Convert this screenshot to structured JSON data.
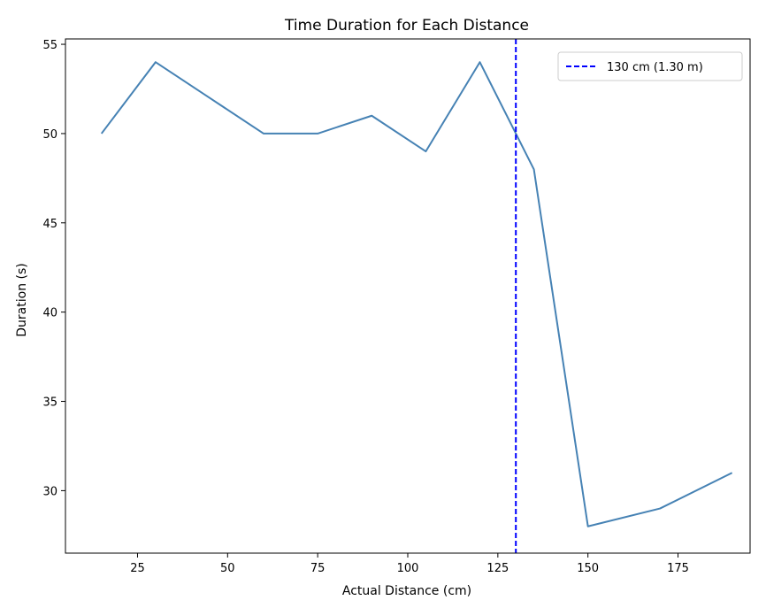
{
  "chart_data": {
    "type": "line",
    "title": "Time Duration for Each Distance",
    "xlabel": "Actual Distance (cm)",
    "ylabel": "Duration (s)",
    "xlim": [
      5,
      195
    ],
    "ylim": [
      26.5,
      55.3
    ],
    "xticks": [
      25,
      50,
      75,
      100,
      125,
      150,
      175
    ],
    "yticks": [
      30,
      35,
      40,
      45,
      50,
      55
    ],
    "grid": false,
    "legend_position": "top-right",
    "series": [
      {
        "color": "#4682b4",
        "x": [
          15,
          30,
          45,
          60,
          75,
          90,
          105,
          120,
          135,
          150,
          170,
          190
        ],
        "y": [
          50,
          54,
          52,
          50,
          50,
          51,
          49,
          54,
          48,
          28,
          29,
          31
        ]
      }
    ],
    "vline": {
      "x": 130,
      "label": "130 cm (1.30 m)",
      "color": "#0000ff",
      "style": "dashed"
    }
  }
}
